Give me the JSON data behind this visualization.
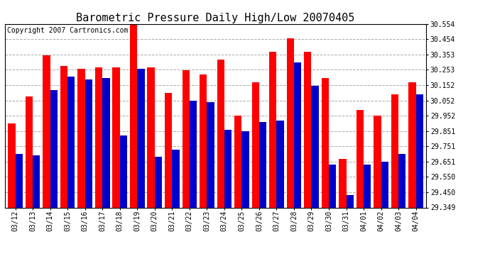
{
  "title": "Barometric Pressure Daily High/Low 20070405",
  "copyright": "Copyright 2007 Cartronics.com",
  "categories": [
    "03/12",
    "03/13",
    "03/14",
    "03/15",
    "03/16",
    "03/17",
    "03/18",
    "03/19",
    "03/20",
    "03/21",
    "03/22",
    "03/23",
    "03/24",
    "03/25",
    "03/26",
    "03/27",
    "03/28",
    "03/29",
    "03/30",
    "03/31",
    "04/01",
    "04/02",
    "04/03",
    "04/04"
  ],
  "highs": [
    29.9,
    30.08,
    30.35,
    30.28,
    30.26,
    30.27,
    30.27,
    30.56,
    30.27,
    30.1,
    30.25,
    30.22,
    30.32,
    29.95,
    30.17,
    30.37,
    30.46,
    30.37,
    30.2,
    29.67,
    29.99,
    29.95,
    30.09,
    30.17
  ],
  "lows": [
    29.7,
    29.69,
    30.12,
    30.21,
    30.19,
    30.2,
    29.82,
    30.26,
    29.68,
    29.73,
    30.05,
    30.04,
    29.86,
    29.85,
    29.91,
    29.92,
    30.3,
    30.15,
    29.63,
    29.43,
    29.63,
    29.65,
    29.7,
    30.09
  ],
  "high_color": "#ff0000",
  "low_color": "#0000cc",
  "ylim_min": 29.349,
  "ylim_max": 30.554,
  "yticks": [
    29.349,
    29.45,
    29.55,
    29.651,
    29.751,
    29.851,
    29.952,
    30.052,
    30.152,
    30.253,
    30.353,
    30.454,
    30.554
  ],
  "bg_color": "#ffffff",
  "grid_color": "#aaaaaa",
  "title_fontsize": 11,
  "copyright_fontsize": 7,
  "bar_width": 0.42
}
